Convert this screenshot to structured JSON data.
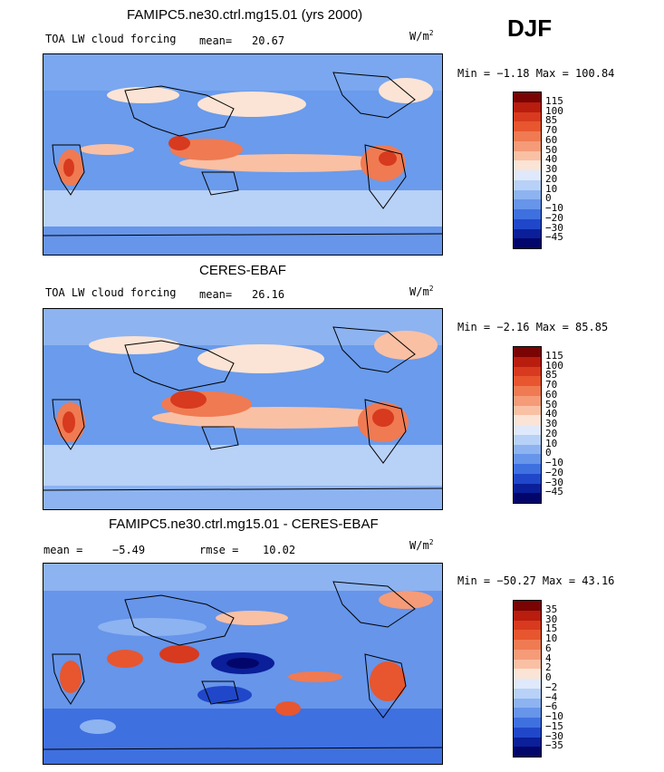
{
  "season": "DJF",
  "colors": {
    "map_base": "#5b8fe8",
    "coast": "#000000"
  },
  "panels": [
    {
      "id": "model",
      "title": "FAMIPC5.ne30.ctrl.mg15.01 (yrs 2000)",
      "variable": "TOA LW cloud forcing",
      "stat_label": "mean=",
      "stat_value": "20.67",
      "stat2_label": "",
      "stat2_value": "",
      "units": "W/m",
      "units_sup": "2",
      "minmax": "Min =  −1.18 Max = 100.84",
      "colorbar": {
        "labels": [
          "115",
          "100",
          "85",
          "70",
          "60",
          "50",
          "40",
          "30",
          "20",
          "10",
          "0",
          "−10",
          "−20",
          "−30",
          "−45"
        ],
        "colors": [
          "#7a0403",
          "#b81d0e",
          "#d73a1e",
          "#e7562f",
          "#f07a52",
          "#f59b78",
          "#f9c0a4",
          "#fbe4d5",
          "#dfe9fb",
          "#b8d1f7",
          "#8db3f1",
          "#6695ea",
          "#3f70e0",
          "#2047c9",
          "#0a1f99",
          "#02066b"
        ]
      }
    },
    {
      "id": "obs",
      "title": "CERES-EBAF",
      "variable": "TOA LW cloud forcing",
      "stat_label": "mean=",
      "stat_value": "26.16",
      "stat2_label": "",
      "stat2_value": "",
      "units": "W/m",
      "units_sup": "2",
      "minmax": "Min =  −2.16 Max =  85.85",
      "colorbar": {
        "labels": [
          "115",
          "100",
          "85",
          "70",
          "60",
          "50",
          "40",
          "30",
          "20",
          "10",
          "0",
          "−10",
          "−20",
          "−30",
          "−45"
        ],
        "colors": [
          "#7a0403",
          "#b81d0e",
          "#d73a1e",
          "#e7562f",
          "#f07a52",
          "#f59b78",
          "#f9c0a4",
          "#fbe4d5",
          "#dfe9fb",
          "#b8d1f7",
          "#8db3f1",
          "#6695ea",
          "#3f70e0",
          "#2047c9",
          "#0a1f99",
          "#02066b"
        ]
      }
    },
    {
      "id": "diff",
      "title": "FAMIPC5.ne30.ctrl.mg15.01 - CERES-EBAF",
      "variable": "",
      "stat_label": "mean =",
      "stat_value": "−5.49",
      "stat2_label": "rmse =",
      "stat2_value": "10.02",
      "units": "W/m",
      "units_sup": "2",
      "minmax": "Min = −50.27 Max =  43.16",
      "colorbar": {
        "labels": [
          "35",
          "30",
          "15",
          "10",
          "6",
          "4",
          "2",
          "0",
          "−2",
          "−4",
          "−6",
          "−10",
          "−15",
          "−30",
          "−35"
        ],
        "colors": [
          "#7a0403",
          "#b81d0e",
          "#d73a1e",
          "#e7562f",
          "#f07a52",
          "#f59b78",
          "#f9c0a4",
          "#fbe4d5",
          "#dfe9fb",
          "#b8d1f7",
          "#8db3f1",
          "#6695ea",
          "#3f70e0",
          "#2047c9",
          "#0a1f99",
          "#02066b"
        ]
      }
    }
  ],
  "chart_data": [
    {
      "type": "heatmap",
      "title": "FAMIPC5.ne30.ctrl.mg15.01 (yrs 2000)",
      "subtitle": "TOA LW cloud forcing",
      "units": "W/m2",
      "mean": 20.67,
      "min": -1.18,
      "max": 100.84,
      "levels": [
        -45,
        -30,
        -20,
        -10,
        0,
        10,
        20,
        30,
        40,
        50,
        60,
        70,
        85,
        100,
        115
      ]
    },
    {
      "type": "heatmap",
      "title": "CERES-EBAF",
      "subtitle": "TOA LW cloud forcing",
      "units": "W/m2",
      "mean": 26.16,
      "min": -2.16,
      "max": 85.85,
      "levels": [
        -45,
        -30,
        -20,
        -10,
        0,
        10,
        20,
        30,
        40,
        50,
        60,
        70,
        85,
        100,
        115
      ]
    },
    {
      "type": "heatmap",
      "title": "FAMIPC5.ne30.ctrl.mg15.01 - CERES-EBAF",
      "units": "W/m2",
      "mean": -5.49,
      "rmse": 10.02,
      "min": -50.27,
      "max": 43.16,
      "levels": [
        -35,
        -30,
        -15,
        -10,
        -6,
        -4,
        -2,
        0,
        2,
        4,
        6,
        10,
        15,
        30,
        35
      ]
    }
  ]
}
